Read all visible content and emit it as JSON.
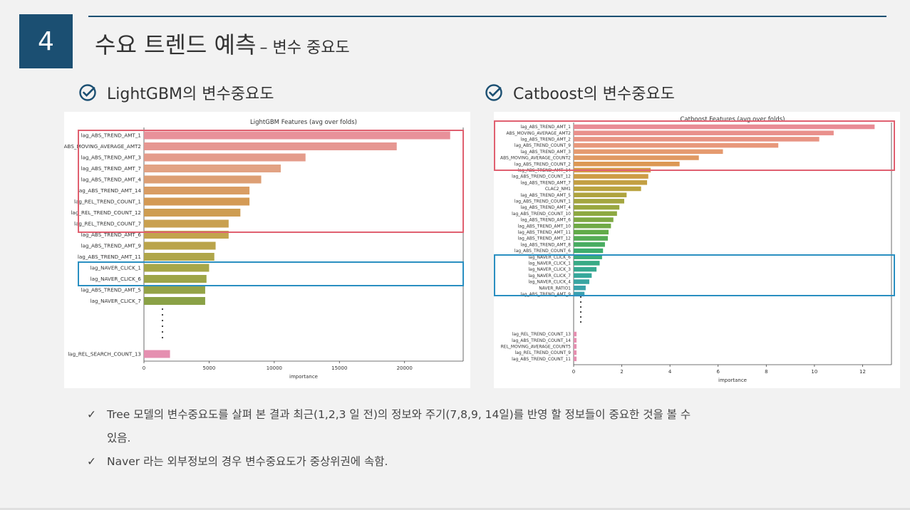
{
  "header": {
    "number": "4",
    "title": "수요 트렌드 예측",
    "subtitle": "– 변수 중요도"
  },
  "sections": {
    "left_title": "LightGBM의 변수중요도",
    "right_title": "Catboost의 변수중요도"
  },
  "notes": {
    "line1": "Tree 모델의 변수중요도를 살펴 본 결과 최근(1,2,3 일 전)의 정보와 주기(7,8,9, 14일)를 반영 할 정보들이 중요한 것을 볼 수",
    "line2": "있음.",
    "line3": "Naver 라는 외부정보의 경우 변수중요도가 중상위권에 속함."
  },
  "colors": {
    "header_blue": "#1b4f72",
    "red_box": "#e06070",
    "blue_box": "#2a8fc1"
  },
  "chart_data": [
    {
      "type": "bar",
      "orientation": "horizontal",
      "title": "LightGBM Features (avg over folds)",
      "xlabel": "importance",
      "xlim": [
        0,
        24500
      ],
      "xticks": [
        0,
        5000,
        10000,
        15000,
        20000
      ],
      "categories": [
        "lag_ABS_TREND_AMT_1",
        "ABS_MOVING_AVERAGE_AMT2",
        "lag_ABS_TREND_AMT_3",
        "lag_ABS_TREND_AMT_7",
        "lag_ABS_TREND_AMT_4",
        "lag_ABS_TREND_AMT_14",
        "lag_REL_TREND_COUNT_1",
        "lag_REL_TREND_COUNT_12",
        "lag_REL_TREND_COUNT_7",
        "lag_ABS_TREND_AMT_6",
        "lag_ABS_TREND_AMT_9",
        "lag_ABS_TREND_AMT_11",
        "lag_NAVER_CLICK_1",
        "lag_NAVER_CLICK_6",
        "lag_ABS_TREND_AMT_5",
        "lag_NAVER_CLICK_7"
      ],
      "values": [
        23500,
        19400,
        12400,
        10500,
        9000,
        8100,
        8100,
        7400,
        6500,
        6500,
        5500,
        5400,
        5000,
        4800,
        4700,
        4700
      ],
      "tail_categories": [
        "lag_REL_SEARCH_COUNT_13"
      ],
      "tail_values": [
        2000
      ]
    },
    {
      "type": "bar",
      "orientation": "horizontal",
      "title": "Catboost Features (avg over folds)",
      "xlabel": "importance",
      "xlim": [
        0,
        13.2
      ],
      "xticks": [
        0,
        2,
        4,
        6,
        8,
        10,
        12
      ],
      "categories": [
        "lag_ABS_TREND_AMT_1",
        "ABS_MOVING_AVERAGE_AMT2",
        "lag_ABS_TREND_AMT_2",
        "lag_ABS_TREND_COUNT_9",
        "lag_ABS_TREND_AMT_3",
        "ABS_MOVING_AVERAGE_COUNT2",
        "lag_ABS_TREND_COUNT_2",
        "lag_ABS_TREND_AMT_14",
        "lag_ABS_TREND_COUNT_12",
        "lag_ABS_TREND_AMT_7",
        "CLAC2_NM1",
        "lag_ABS_TREND_AMT_5",
        "lag_ABS_TREND_COUNT_1",
        "lag_ABS_TREND_AMT_4",
        "lag_ABS_TREND_COUNT_10",
        "lag_ABS_TREND_AMT_6",
        "lag_ABS_TREND_AMT_10",
        "lag_ABS_TREND_AMT_11",
        "lag_ABS_TREND_AMT_12",
        "lag_ABS_TREND_AMT_8",
        "lag_ABS_TREND_COUNT_6",
        "lag_NAVER_CLICK_6",
        "lag_NAVER_CLICK_1",
        "lag_NAVER_CLICK_3",
        "lag_NAVER_CLICK_7",
        "lag_NAVER_CLICK_4",
        "NAVER_RATIO1",
        "lag_ABS_TREND_AMT_9"
      ],
      "values": [
        12.5,
        10.8,
        10.2,
        8.5,
        6.2,
        5.2,
        4.4,
        3.2,
        3.1,
        3.05,
        2.8,
        2.2,
        2.1,
        1.9,
        1.8,
        1.65,
        1.55,
        1.45,
        1.42,
        1.3,
        1.22,
        1.18,
        1.08,
        0.95,
        0.75,
        0.65,
        0.5,
        0.45
      ],
      "tail_categories": [
        "lag_REL_TREND_COUNT_13",
        "lag_ABS_TREND_COUNT_14",
        "REL_MOVING_AVERAGE_COUNT5",
        "lag_REL_TREND_COUNT_9",
        "lag_ABS_TREND_COUNT_11"
      ],
      "tail_values": [
        0.12,
        0.12,
        0.12,
        0.12,
        0.12
      ]
    }
  ]
}
